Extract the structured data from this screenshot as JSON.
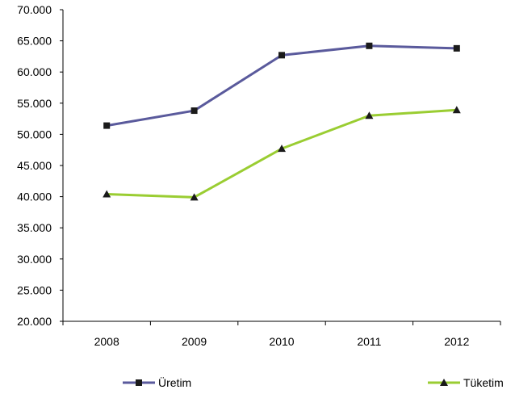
{
  "chart_data": {
    "type": "line",
    "title": "",
    "xlabel": "",
    "ylabel": "",
    "categories": [
      "2008",
      "2009",
      "2010",
      "2011",
      "2012"
    ],
    "ylim": [
      20000,
      70000
    ],
    "ytick_step": 5000,
    "y_tick_labels": [
      "20.000",
      "25.000",
      "30.000",
      "35.000",
      "40.000",
      "45.000",
      "50.000",
      "55.000",
      "60.000",
      "65.000",
      "70.000"
    ],
    "grid": false,
    "legend": "bottom",
    "series": [
      {
        "name": "Üretim",
        "values": [
          51400,
          53800,
          62700,
          64200,
          63800
        ],
        "color": "#5a5a9c",
        "marker": "square"
      },
      {
        "name": "Tüketim",
        "values": [
          40400,
          39900,
          47700,
          53000,
          53900
        ],
        "color": "#9acd32",
        "marker": "triangle"
      }
    ]
  }
}
